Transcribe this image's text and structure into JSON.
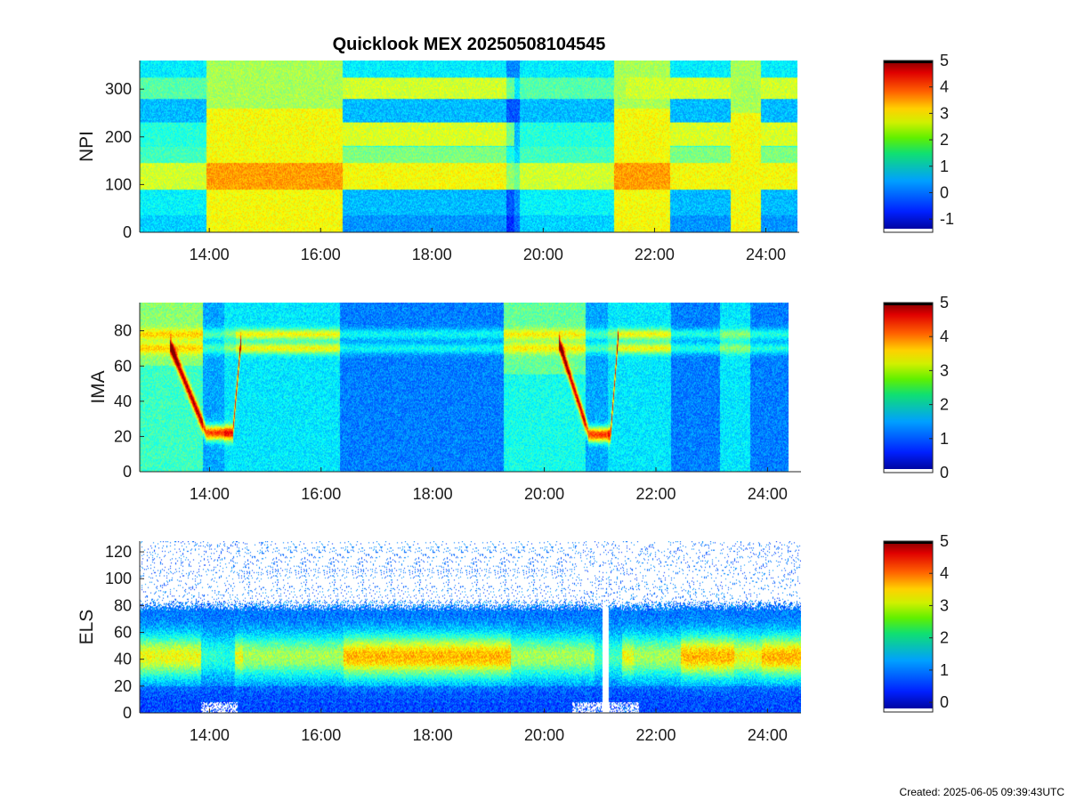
{
  "figure": {
    "title": "Quicklook MEX 20250508104545",
    "footer": "Created: 2025-06-05 09:39:43UTC"
  },
  "chart_data": [
    {
      "type": "heatmap",
      "panel": "NPI",
      "ylabel": "NPI",
      "x_range_hours": [
        12.75,
        24.6
      ],
      "ylim": [
        0,
        360
      ],
      "yticks": [
        0,
        100,
        200,
        300
      ],
      "xticks": [
        "14:00",
        "16:00",
        "18:00",
        "20:00",
        "22:00",
        "24:00"
      ],
      "xtick_hours": [
        14,
        16,
        18,
        20,
        22,
        24
      ],
      "colorbar": {
        "min": -1.5,
        "max": 5,
        "ticks": [
          -1,
          0,
          1,
          2,
          3,
          4,
          5
        ]
      }
    },
    {
      "type": "heatmap",
      "panel": "IMA",
      "ylabel": "IMA",
      "x_range_hours": [
        12.75,
        24.6
      ],
      "ylim": [
        0,
        96
      ],
      "yticks": [
        0,
        20,
        40,
        60,
        80
      ],
      "xticks": [
        "14:00",
        "16:00",
        "18:00",
        "20:00",
        "22:00",
        "24:00"
      ],
      "xtick_hours": [
        14,
        16,
        18,
        20,
        22,
        24
      ],
      "colorbar": {
        "min": 0,
        "max": 5,
        "ticks": [
          0,
          1,
          2,
          3,
          4,
          5
        ]
      }
    },
    {
      "type": "heatmap",
      "panel": "ELS",
      "ylabel": "ELS",
      "x_range_hours": [
        12.75,
        24.6
      ],
      "ylim": [
        0,
        128
      ],
      "yticks": [
        0,
        20,
        40,
        60,
        80,
        100,
        120
      ],
      "xticks": [
        "14:00",
        "16:00",
        "18:00",
        "20:00",
        "22:00",
        "24:00"
      ],
      "xtick_hours": [
        14,
        16,
        18,
        20,
        22,
        24
      ],
      "colorbar": {
        "min": -0.3,
        "max": 5,
        "ticks": [
          0,
          1,
          2,
          3,
          4,
          5
        ]
      }
    }
  ]
}
